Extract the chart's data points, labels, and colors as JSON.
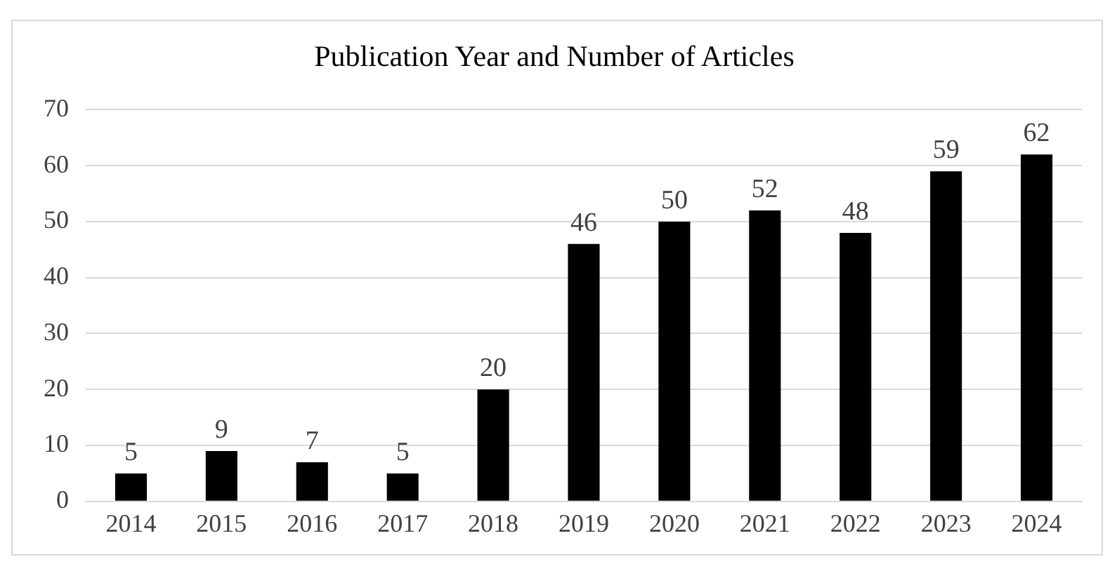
{
  "chart_data": {
    "type": "bar",
    "title": "Publication Year and Number of Articles",
    "categories": [
      "2014",
      "2015",
      "2016",
      "2017",
      "2018",
      "2019",
      "2020",
      "2021",
      "2022",
      "2023",
      "2024"
    ],
    "values": [
      5,
      9,
      7,
      5,
      20,
      46,
      50,
      52,
      48,
      59,
      62
    ],
    "color": "#000000",
    "ylim": [
      0,
      70
    ],
    "yticks": [
      0,
      10,
      20,
      30,
      40,
      50,
      60,
      70
    ],
    "grid": "y",
    "data_labels": true
  }
}
